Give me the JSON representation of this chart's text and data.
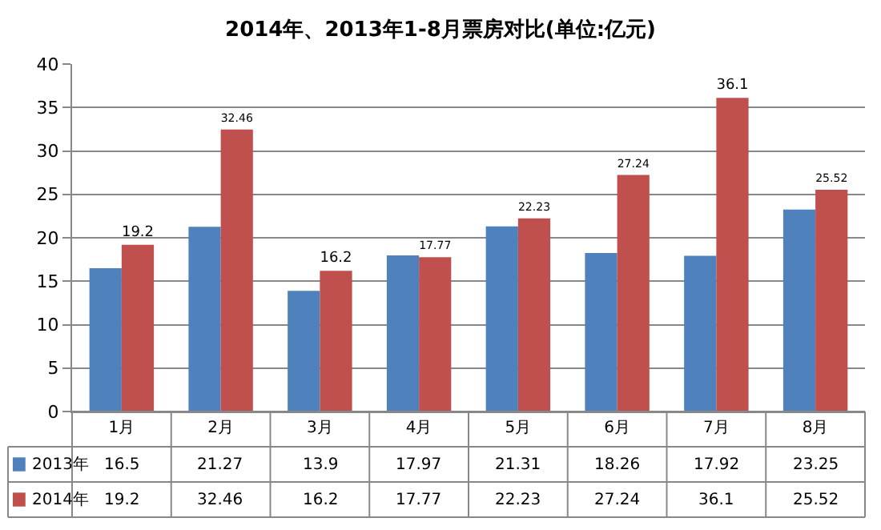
{
  "chart_data": {
    "type": "bar",
    "title": "2014年、2013年1-8月票房对比(单位:亿元)",
    "categories": [
      "1月",
      "2月",
      "3月",
      "4月",
      "5月",
      "6月",
      "7月",
      "8月"
    ],
    "series": [
      {
        "name": "2013年",
        "color": "#4f81bd",
        "values": [
          16.5,
          21.27,
          13.9,
          17.97,
          21.31,
          18.26,
          17.92,
          23.25
        ]
      },
      {
        "name": "2014年",
        "color": "#c0504d",
        "values": [
          19.2,
          32.46,
          16.2,
          17.77,
          22.23,
          27.24,
          36.1,
          25.52
        ],
        "value_labels": [
          "19.2",
          "32.46",
          "16.2",
          "17.77",
          "22.23",
          "27.24",
          "36.1",
          "25.52"
        ]
      }
    ],
    "ylim": [
      0,
      40
    ],
    "yticks": [
      0,
      5,
      10,
      15,
      20,
      25,
      30,
      35,
      40
    ],
    "grid": "y",
    "data_labels": true,
    "legend": "bottom"
  }
}
